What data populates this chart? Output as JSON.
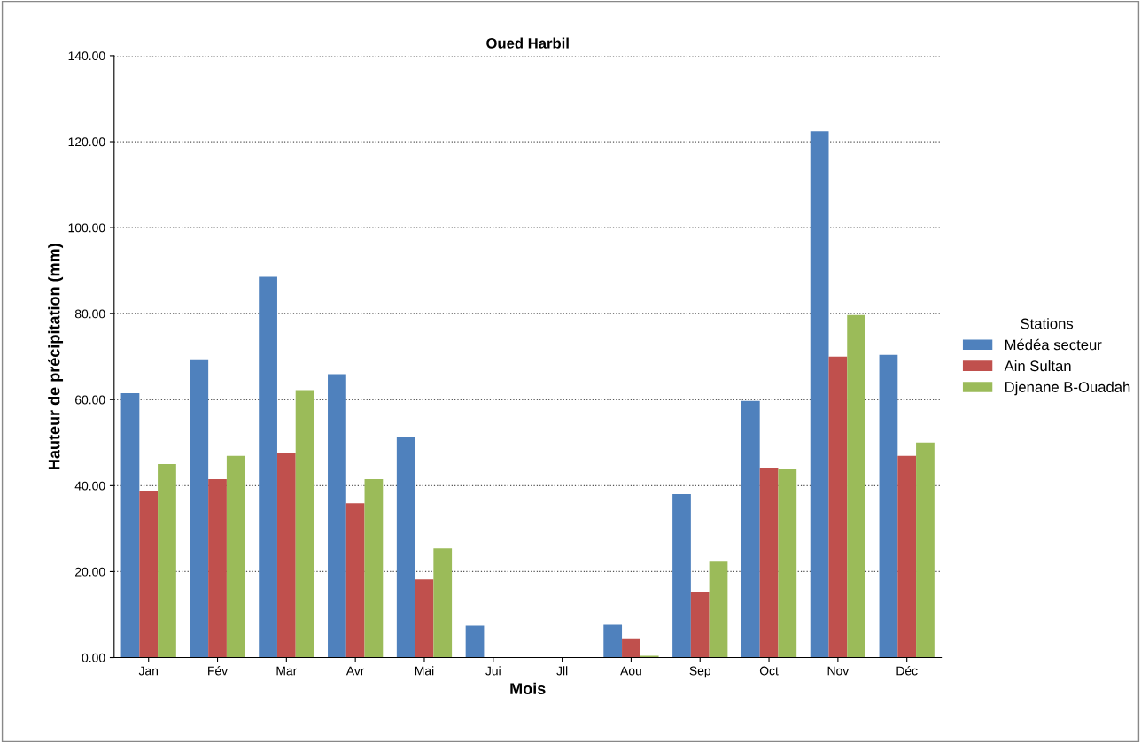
{
  "chart_data": {
    "type": "bar",
    "title": "Oued Harbil",
    "xlabel": "Mois",
    "ylabel": "Hauteur de précipitation (mm)",
    "legend_title": "Stations",
    "categories": [
      "Jan",
      "Fév",
      "Mar",
      "Avr",
      "Mai",
      "Jui",
      "Jll",
      "Aou",
      "Sep",
      "Oct",
      "Nov",
      "Déc"
    ],
    "series": [
      {
        "name": "Médéa secteur",
        "color": "#4f81bd",
        "values": [
          61.5,
          69.4,
          88.6,
          65.9,
          51.2,
          7.4,
          0,
          7.6,
          38.0,
          59.7,
          122.4,
          70.4
        ]
      },
      {
        "name": "Ain Sultan",
        "color": "#c0504d",
        "values": [
          38.8,
          41.5,
          47.7,
          35.9,
          18.2,
          0,
          0,
          4.5,
          15.3,
          44.0,
          70.0,
          46.9
        ]
      },
      {
        "name": "Djenane B-Ouadah",
        "color": "#9bbb59",
        "values": [
          45.0,
          46.9,
          62.2,
          41.5,
          25.4,
          0,
          0,
          0.4,
          22.3,
          43.8,
          79.7,
          50.0
        ]
      }
    ],
    "ylim": [
      0,
      140
    ],
    "yticks": [
      {
        "value": 0,
        "label": "0.00"
      },
      {
        "value": 20,
        "label": "20.00"
      },
      {
        "value": 40,
        "label": "40.00"
      },
      {
        "value": 60,
        "label": "60.00"
      },
      {
        "value": 80,
        "label": "80.00"
      },
      {
        "value": 100,
        "label": "100.00"
      },
      {
        "value": 120,
        "label": "120.00"
      },
      {
        "value": 140,
        "label": "140.00"
      }
    ],
    "grid": "y",
    "legend": "right"
  }
}
